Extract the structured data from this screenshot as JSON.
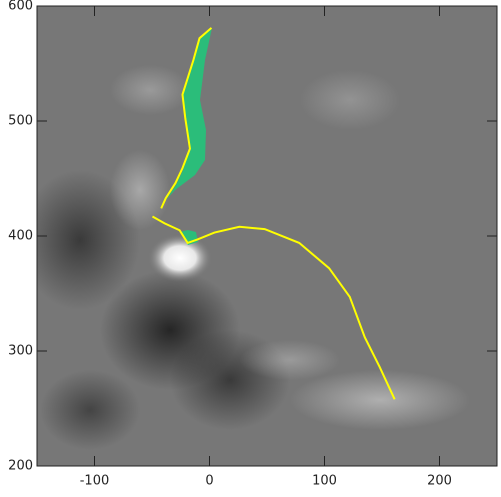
{
  "chart_data": {
    "type": "line",
    "xlim": [
      -150,
      250
    ],
    "ylim": [
      200,
      600
    ],
    "xticks": [
      -100,
      0,
      100,
      200
    ],
    "yticks": [
      200,
      300,
      400,
      500,
      600
    ],
    "series": [
      {
        "color": "#ffff00",
        "x": [
          1.7,
          -8.7,
          -14,
          -23.5,
          -21,
          -17,
          -23.5,
          -29.6,
          -38,
          -42
        ],
        "values": [
          581,
          572,
          553,
          523,
          502,
          476,
          459,
          446,
          433,
          424
        ]
      },
      {
        "color": "#ffff00",
        "x": [
          -49.6,
          -39,
          -26,
          -19,
          -10.4,
          4.3,
          26,
          48,
          78,
          104,
          122,
          135,
          148,
          161
        ],
        "values": [
          417,
          411,
          405,
          394,
          397,
          403,
          408,
          406,
          394,
          372,
          347,
          312,
          286,
          258
        ]
      }
    ]
  }
}
